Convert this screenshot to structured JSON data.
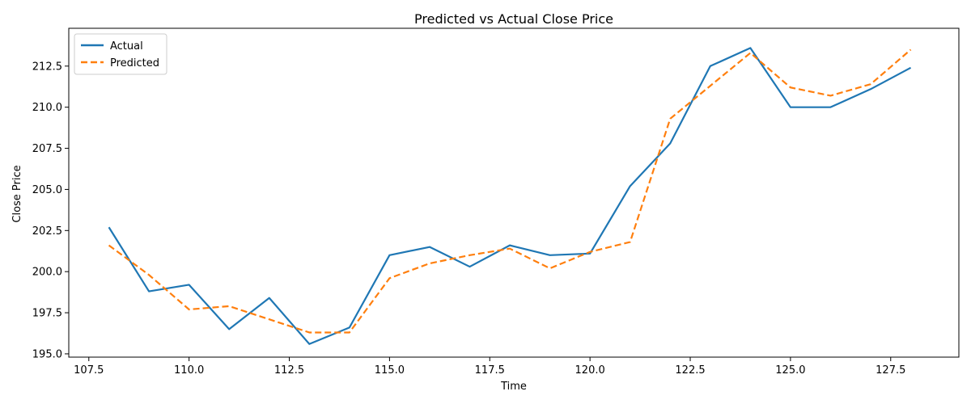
{
  "chart_data": {
    "type": "line",
    "title": "Predicted vs Actual Close Price",
    "xlabel": "Time",
    "ylabel": "Close Price",
    "xlim": [
      107.0,
      129.2
    ],
    "ylim": [
      194.8,
      214.8
    ],
    "xticks": [
      "107.5",
      "110.0",
      "112.5",
      "115.0",
      "117.5",
      "120.0",
      "122.5",
      "125.0",
      "127.5"
    ],
    "yticks": [
      "195.0",
      "197.5",
      "200.0",
      "202.5",
      "205.0",
      "207.5",
      "210.0",
      "212.5"
    ],
    "grid": false,
    "legend_position": "top-left",
    "x": [
      108,
      109,
      110,
      111,
      112,
      113,
      114,
      115,
      116,
      117,
      118,
      119,
      120,
      121,
      122,
      123,
      124,
      125,
      126,
      127,
      128
    ],
    "series": [
      {
        "name": "Actual",
        "color": "#1f77b4",
        "style": "solid",
        "values": [
          202.7,
          198.8,
          199.2,
          196.5,
          198.4,
          195.6,
          196.6,
          201.0,
          201.5,
          200.3,
          201.6,
          201.0,
          201.1,
          205.2,
          207.8,
          212.5,
          213.6,
          210.0,
          210.0,
          211.1,
          212.4
        ]
      },
      {
        "name": "Predicted",
        "color": "#ff7f0e",
        "style": "dashed",
        "values": [
          201.6,
          199.8,
          197.7,
          197.9,
          197.1,
          196.3,
          196.3,
          199.6,
          200.5,
          201.0,
          201.4,
          200.2,
          201.2,
          201.8,
          209.3,
          211.3,
          213.3,
          211.2,
          210.7,
          211.4,
          213.5
        ]
      }
    ]
  }
}
